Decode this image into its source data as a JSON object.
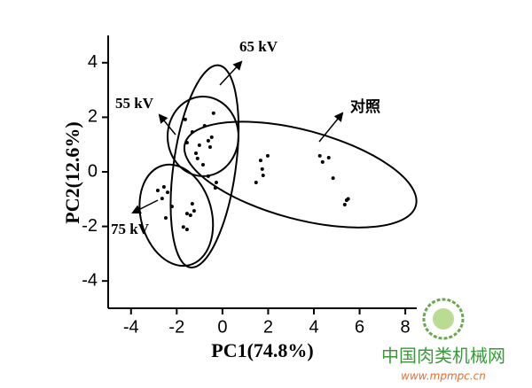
{
  "chart_data": {
    "type": "scatter",
    "x_label": "PC1(74.8%)",
    "y_label": "PC2(12.6%)",
    "xlim": [
      -5,
      8.5
    ],
    "ylim": [
      -5,
      5
    ],
    "xticks": [
      -4,
      -2,
      0,
      2,
      4,
      6,
      8
    ],
    "yticks": [
      -4,
      -2,
      0,
      2,
      4
    ],
    "color": "#000000",
    "series": [
      {
        "name": "对照",
        "x": [
          1.67,
          1.74,
          1.98,
          1.78,
          1.47,
          4.26,
          4.38,
          4.65,
          4.84,
          5.43,
          5.35,
          5.5
        ],
        "values": [
          0.42,
          0.1,
          0.59,
          -0.13,
          -0.39,
          0.59,
          0.36,
          0.52,
          -0.23,
          -1.04,
          -1.2,
          -0.99
        ],
        "ellipse": {
          "cx": 3.41,
          "cy": -0.1,
          "rx": 5.23,
          "ry": 1.63,
          "angle": 15
        }
      },
      {
        "name": "55 kV",
        "x": [
          -1.63,
          -1.32,
          -0.78,
          -0.47,
          -1.01,
          -0.62,
          -1.55,
          -1.09,
          -0.39
        ],
        "values": [
          1.92,
          1.46,
          1.69,
          1.27,
          0.98,
          1.14,
          1.07,
          0.49,
          2.15
        ],
        "ellipse": {
          "cx": -0.85,
          "cy": 1.3,
          "rx": 1.55,
          "ry": 1.46,
          "angle": 0
        }
      },
      {
        "name": "65 kV",
        "x": [
          -0.27,
          -0.31,
          -0.62,
          -0.85,
          -1.16,
          -0.54
        ],
        "values": [
          -0.39,
          -0.59,
          -0.16,
          0.26,
          0.68,
          0.91
        ],
        "ellipse": {
          "cx": -0.78,
          "cy": 0.2,
          "rx": 1.36,
          "ry": 3.74,
          "angle": 8
        }
      },
      {
        "name": "75 kV",
        "x": [
          -2.56,
          -2.4,
          -2.64,
          -2.83,
          -2.21,
          -1.55,
          -1.4,
          -1.24,
          -1.32,
          -1.55,
          -2.48,
          -1.71
        ],
        "values": [
          -0.55,
          -0.75,
          -0.98,
          -0.68,
          -1.27,
          -1.53,
          -1.59,
          -1.43,
          -1.17,
          -2.11,
          -1.69,
          -2.02
        ],
        "ellipse": {
          "cx": -2.02,
          "cy": -1.59,
          "rx": 1.55,
          "ry": 1.89,
          "angle": -15
        }
      }
    ]
  },
  "watermark": {
    "site": "中国肉类机械网",
    "url": "www.mpmpc.cn"
  }
}
